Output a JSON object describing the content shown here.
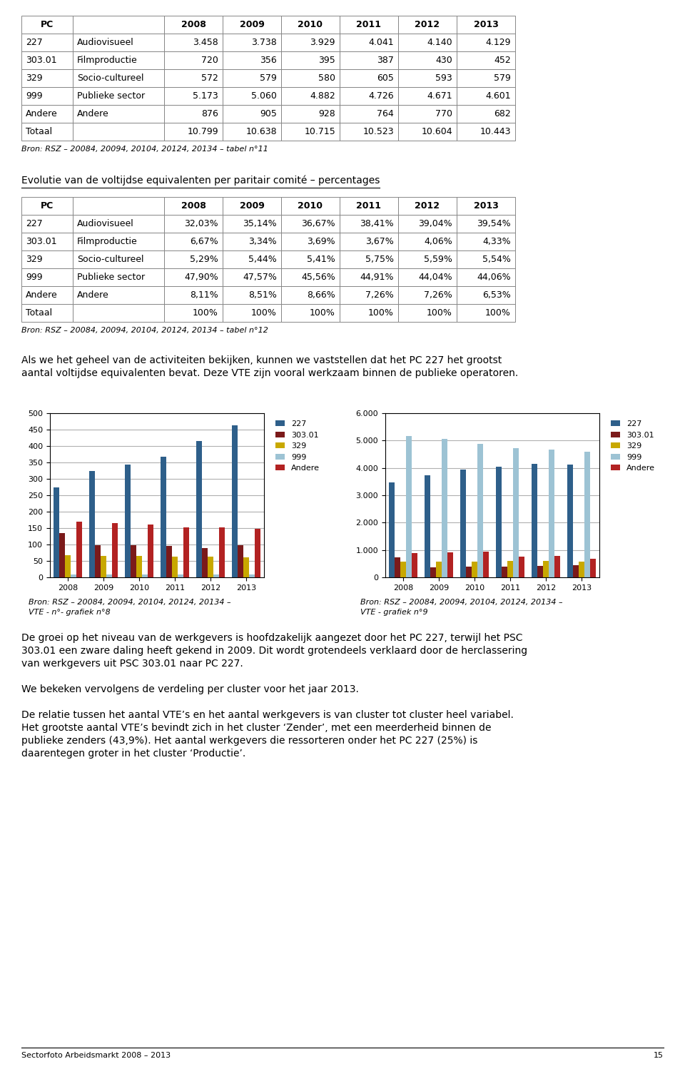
{
  "chart_data": [
    {
      "type": "table",
      "headers": [
        "PC",
        null,
        "2008",
        "2009",
        "2010",
        "2011",
        "2012",
        "2013"
      ],
      "rows": [
        [
          "227",
          "Audiovisueel",
          "3.458",
          "3.738",
          "3.929",
          "4.041",
          "4.140",
          "4.129"
        ],
        [
          "303.01",
          "Filmproductie",
          "720",
          "356",
          "395",
          "387",
          "430",
          "452"
        ],
        [
          "329",
          "Socio-cultureel",
          "572",
          "579",
          "580",
          "605",
          "593",
          "579"
        ],
        [
          "999",
          "Publieke sector",
          "5.173",
          "5.060",
          "4.882",
          "4.726",
          "4.671",
          "4.601"
        ],
        [
          "Andere",
          "Andere",
          "876",
          "905",
          "928",
          "764",
          "770",
          "682"
        ],
        [
          "Totaal",
          null,
          "10.799",
          "10.638",
          "10.715",
          "10.523",
          "10.604",
          "10.443"
        ]
      ],
      "annotations": [
        "Bron: RSZ – 20084, 20094, 20104, 20124, 20134 – tabel n°11"
      ]
    },
    {
      "type": "table",
      "title": "Evolutie van de voltijdse equivalenten per paritair comité – percentages",
      "headers": [
        "PC",
        null,
        "2008",
        "2009",
        "2010",
        "2011",
        "2012",
        "2013"
      ],
      "rows": [
        [
          "227",
          "Audiovisueel",
          "32,03%",
          "35,14%",
          "36,67%",
          "38,41%",
          "39,04%",
          "39,54%"
        ],
        [
          "303.01",
          "Filmproductie",
          "6,67%",
          "3,34%",
          "3,69%",
          "3,67%",
          "4,06%",
          "4,33%"
        ],
        [
          "329",
          "Socio-cultureel",
          "5,29%",
          "5,44%",
          "5,41%",
          "5,75%",
          "5,59%",
          "5,54%"
        ],
        [
          "999",
          "Publieke sector",
          "47,90%",
          "47,57%",
          "45,56%",
          "44,91%",
          "44,04%",
          "44,06%"
        ],
        [
          "Andere",
          "Andere",
          "8,11%",
          "8,51%",
          "8,66%",
          "7,26%",
          "7,26%",
          "6,53%"
        ],
        [
          "Totaal",
          null,
          "100%",
          "100%",
          "100%",
          "100%",
          "100%",
          "100%"
        ]
      ],
      "annotations": [
        "Bron: RSZ – 20084, 20094, 20104, 20124, 20134 – tabel n°12"
      ]
    },
    {
      "type": "bar",
      "categories": [
        "2008",
        "2009",
        "2010",
        "2011",
        "2012",
        "2013"
      ],
      "series": [
        {
          "name": "227",
          "color": "#2E5F8A",
          "values": [
            275,
            323,
            343,
            368,
            415,
            462
          ]
        },
        {
          "name": "303.01",
          "color": "#7B1A1A",
          "values": [
            135,
            97,
            97,
            95,
            90,
            98
          ]
        },
        {
          "name": "329",
          "color": "#C8A800",
          "values": [
            68,
            66,
            65,
            63,
            62,
            61
          ]
        },
        {
          "name": "999",
          "color": "#9DC3D4",
          "values": [
            8,
            8,
            8,
            8,
            8,
            8
          ]
        },
        {
          "name": "Andere",
          "color": "#B22222",
          "values": [
            170,
            166,
            160,
            152,
            152,
            148
          ]
        }
      ],
      "ylim": [
        0,
        500
      ],
      "yticks": [
        0,
        50,
        100,
        150,
        200,
        250,
        300,
        350,
        400,
        450,
        500
      ],
      "grid": true,
      "legend": "upper left",
      "annotations": [
        "Bron: RSZ – 20084, 20094, 20104, 20124, 20134 –",
        "VTE - n°- grafiek n°8"
      ]
    },
    {
      "type": "bar",
      "categories": [
        "2008",
        "2009",
        "2010",
        "2011",
        "2012",
        "2013"
      ],
      "series": [
        {
          "name": "227",
          "color": "#2E5F8A",
          "values": [
            3458,
            3738,
            3929,
            4041,
            4140,
            4129
          ]
        },
        {
          "name": "303.01",
          "color": "#7B1A1A",
          "values": [
            720,
            356,
            395,
            387,
            430,
            452
          ]
        },
        {
          "name": "329",
          "color": "#C8A800",
          "values": [
            572,
            579,
            580,
            605,
            593,
            579
          ]
        },
        {
          "name": "999",
          "color": "#9DC3D4",
          "values": [
            5173,
            5060,
            4882,
            4726,
            4671,
            4601
          ]
        },
        {
          "name": "Andere",
          "color": "#B22222",
          "values": [
            876,
            905,
            928,
            764,
            770,
            682
          ]
        }
      ],
      "ylim": [
        0,
        6000
      ],
      "yticks": [
        0,
        {
          "value": 1000,
          "label": "1.000"
        },
        {
          "value": 2000,
          "label": "2.000"
        },
        {
          "value": 3000,
          "label": "3.000"
        },
        {
          "value": 4000,
          "label": "4.000"
        },
        {
          "value": 5000,
          "label": "5.000"
        },
        {
          "value": 6000,
          "label": "6.000"
        }
      ],
      "grid": true,
      "legend": "upper left",
      "annotations": [
        "Bron: RSZ – 20084, 20094, 20104, 20124, 20134 –",
        "VTE - grafiek n°9"
      ]
    }
  ],
  "paragraphs": [
    [
      "Als we het geheel van de activiteiten bekijken, kunnen we vaststellen dat het PC 227 het grootst",
      "aantal voltijdse equivalenten bevat. Deze VTE zijn vooral werkzaam binnen de publieke operatoren."
    ],
    [
      "De groei op het niveau van de werkgevers is hoofdzakelijk aangezet door het PC 227, terwijl het PSC",
      "303.01 een zware daling heeft gekend in 2009. Dit wordt grotendeels verklaard door de herclassering",
      "van werkgevers uit PSC 303.01 naar PC 227."
    ],
    [
      "We bekeken vervolgens de verdeling per cluster voor het jaar 2013."
    ],
    [
      "De relatie tussen het aantal VTE’s en het aantal werkgevers is van cluster tot cluster heel variabel.",
      "Het grootste aantal VTE’s bevindt zich in het cluster ‘Zender’, met een meerderheid binnen de",
      "publieke zenders (43,9%). Het aantal werkgevers die ressorteren onder het PC 227 (25%) is",
      "daarentegen groter in het cluster ‘Productie’."
    ]
  ],
  "footer": [
    "Sectorfoto Arbeidsmarkt 2008 – 2013",
    "15"
  ]
}
